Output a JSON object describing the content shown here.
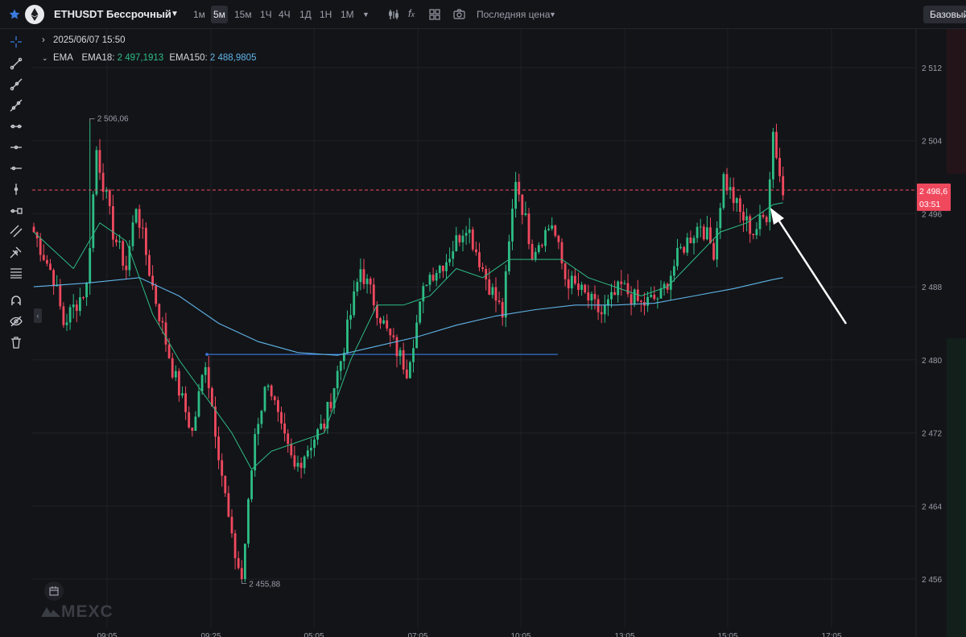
{
  "header": {
    "symbol": "ETHUSDT Бессрочный",
    "timeframes": [
      "1м",
      "5м",
      "15м",
      "1Ч",
      "4Ч",
      "1Д",
      "1Н",
      "1М"
    ],
    "active_timeframe": "5м",
    "price_type": "Последняя цена",
    "basic_button": "Базовый"
  },
  "legend": {
    "datetime": "2025/06/07 15:50",
    "indicator": "EMA",
    "ema18_label": "EMA18:",
    "ema18_value": "2 497,1913",
    "ema150_label": "EMA150:",
    "ema150_value": "2 488,9805"
  },
  "price_tag": {
    "price": "2 498,6",
    "countdown": "03:51"
  },
  "watermark": "MEXC",
  "colors": {
    "up": "#2dbd85",
    "down": "#f0495e",
    "ema18": "#2dbd85",
    "ema150": "#5fb5e8",
    "level_line": "#3a7be0",
    "background": "#131418"
  },
  "chart_data": {
    "type": "candlestick",
    "y_range": [
      2452,
      2515
    ],
    "y_ticks": [
      2456,
      2464,
      2472,
      2480,
      2488,
      2496,
      2504,
      2512
    ],
    "y_tick_labels": [
      "2 456",
      "2 464",
      "2 472",
      "2 480",
      "2 488",
      "2 496",
      "2 504",
      "2 512"
    ],
    "x_tick_labels": [
      "09:05",
      "09:25",
      "05:05",
      "07:05",
      "10:05",
      "13:05",
      "15:05",
      "17:05"
    ],
    "high_annotation": {
      "label": "2 506,06",
      "value": 2506.06
    },
    "low_annotation": {
      "label": "2 455,88",
      "value": 2455.88
    },
    "current_price": 2498.6,
    "horizontal_level": 2480.6,
    "keypoints": [
      [
        0,
        2494
      ],
      [
        6,
        2489
      ],
      [
        9,
        2484
      ],
      [
        16,
        2488
      ],
      [
        19,
        2503
      ],
      [
        24,
        2494
      ],
      [
        28,
        2490
      ],
      [
        31,
        2497
      ],
      [
        36,
        2488
      ],
      [
        42,
        2479
      ],
      [
        48,
        2472
      ],
      [
        52,
        2480
      ],
      [
        56,
        2470
      ],
      [
        60,
        2460
      ],
      [
        63,
        2456
      ],
      [
        67,
        2472
      ],
      [
        71,
        2478
      ],
      [
        75,
        2472
      ],
      [
        79,
        2468
      ],
      [
        84,
        2471
      ],
      [
        88,
        2473
      ],
      [
        93,
        2480
      ],
      [
        99,
        2490
      ],
      [
        107,
        2483
      ],
      [
        113,
        2479
      ],
      [
        119,
        2489
      ],
      [
        125,
        2491
      ],
      [
        131,
        2495
      ],
      [
        137,
        2489
      ],
      [
        142,
        2485
      ],
      [
        146,
        2500
      ],
      [
        151,
        2492
      ],
      [
        157,
        2495
      ],
      [
        161,
        2489
      ],
      [
        167,
        2487
      ],
      [
        172,
        2485
      ],
      [
        178,
        2488
      ],
      [
        184,
        2486
      ],
      [
        190,
        2487
      ],
      [
        196,
        2492
      ],
      [
        202,
        2495
      ],
      [
        206,
        2492
      ],
      [
        209,
        2500
      ],
      [
        214,
        2496
      ],
      [
        218,
        2494
      ],
      [
        222,
        2496
      ],
      [
        224,
        2505
      ],
      [
        227,
        2498
      ]
    ],
    "ema18": [
      [
        0,
        2494
      ],
      [
        12,
        2490
      ],
      [
        20,
        2495
      ],
      [
        28,
        2493
      ],
      [
        36,
        2485
      ],
      [
        44,
        2480
      ],
      [
        52,
        2476
      ],
      [
        60,
        2472
      ],
      [
        66,
        2468
      ],
      [
        72,
        2470
      ],
      [
        80,
        2471
      ],
      [
        88,
        2472
      ],
      [
        96,
        2480
      ],
      [
        104,
        2486
      ],
      [
        112,
        2486
      ],
      [
        120,
        2487
      ],
      [
        128,
        2490
      ],
      [
        136,
        2489
      ],
      [
        144,
        2491
      ],
      [
        152,
        2491
      ],
      [
        160,
        2491
      ],
      [
        168,
        2489
      ],
      [
        176,
        2488
      ],
      [
        184,
        2487
      ],
      [
        192,
        2488
      ],
      [
        200,
        2491
      ],
      [
        208,
        2494
      ],
      [
        216,
        2495
      ],
      [
        224,
        2497
      ],
      [
        227,
        2497.2
      ]
    ],
    "ema150": [
      [
        0,
        2488
      ],
      [
        16,
        2488.4
      ],
      [
        32,
        2489
      ],
      [
        44,
        2487
      ],
      [
        56,
        2484
      ],
      [
        68,
        2482
      ],
      [
        80,
        2480.8
      ],
      [
        92,
        2480.5
      ],
      [
        104,
        2481.5
      ],
      [
        116,
        2482.5
      ],
      [
        128,
        2483.8
      ],
      [
        140,
        2484.8
      ],
      [
        152,
        2485.5
      ],
      [
        164,
        2486
      ],
      [
        176,
        2486
      ],
      [
        188,
        2486.2
      ],
      [
        200,
        2487
      ],
      [
        212,
        2487.8
      ],
      [
        224,
        2488.8
      ],
      [
        227,
        2489
      ]
    ]
  }
}
